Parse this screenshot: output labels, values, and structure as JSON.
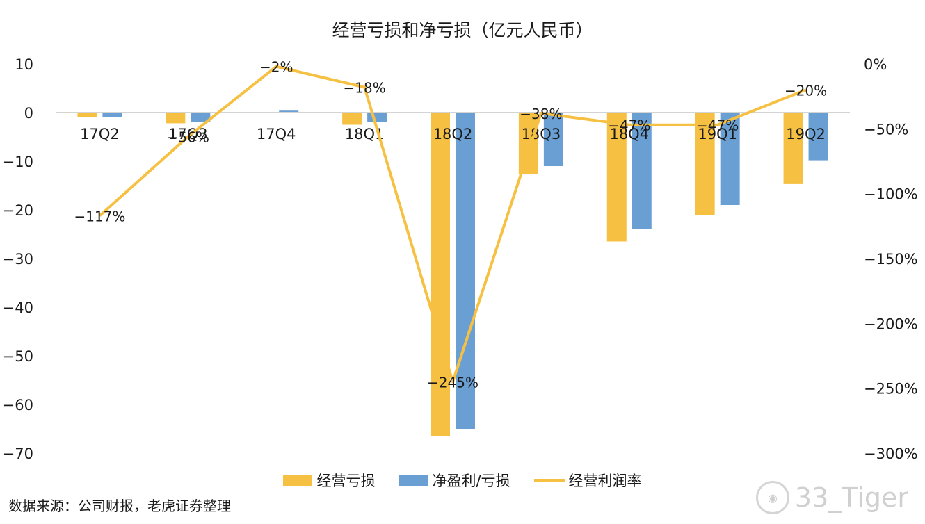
{
  "chart_data": {
    "type": "bar",
    "title": "经营亏损和净亏损（亿元人民币）",
    "categories": [
      "17Q2",
      "17Q3",
      "17Q4",
      "18Q1",
      "18Q2",
      "18Q3",
      "18Q4",
      "19Q1",
      "19Q2"
    ],
    "series": [
      {
        "name": "经营亏损",
        "type": "bar",
        "axis": "left",
        "color": "#F6C143",
        "values": [
          -1.0,
          -2.2,
          0.0,
          -2.5,
          -66.5,
          -12.7,
          -26.5,
          -21.0,
          -14.7
        ]
      },
      {
        "name": "净盈利/亏损",
        "type": "bar",
        "axis": "left",
        "color": "#6A9FD4",
        "values": [
          -1.0,
          -2.0,
          0.4,
          -2.0,
          -65.0,
          -11.0,
          -24.0,
          -19.0,
          -9.8
        ]
      },
      {
        "name": "经营利润率",
        "type": "line",
        "axis": "right",
        "color": "#F6C143",
        "values": [
          -117,
          -56,
          -2,
          -18,
          -245,
          -38,
          -47,
          -47,
          -20
        ],
        "labels": [
          "-117%",
          "-56%",
          "-2%",
          "-18%",
          "-245%",
          "-38%",
          "-47%",
          "-47%",
          "-20%"
        ]
      }
    ],
    "y_left": {
      "min": -70,
      "max": 10,
      "step": 10,
      "ticks": [
        "10",
        "0",
        "-10",
        "-20",
        "-30",
        "-40",
        "-50",
        "-60",
        "-70"
      ]
    },
    "y_right": {
      "min": -300,
      "max": 0,
      "step": 50,
      "ticks": [
        "0%",
        "-50%",
        "-100%",
        "-150%",
        "-200%",
        "-250%",
        "-300%"
      ]
    },
    "grid": false,
    "legend": "bottom"
  },
  "legend": {
    "items": [
      {
        "label": "经营亏损"
      },
      {
        "label": "净盈利/亏损"
      },
      {
        "label": "经营利润率"
      }
    ]
  },
  "source": "数据来源：公司财报，老虎证券整理",
  "watermark": {
    "text": "33_Tiger",
    "icon": "tiger-logo-icon"
  }
}
